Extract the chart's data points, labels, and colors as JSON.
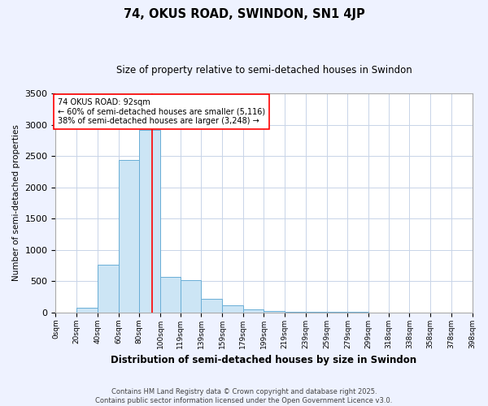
{
  "title": "74, OKUS ROAD, SWINDON, SN1 4JP",
  "subtitle": "Size of property relative to semi-detached houses in Swindon",
  "xlabel": "Distribution of semi-detached houses by size in Swindon",
  "ylabel": "Number of semi-detached properties",
  "annotation_text_line1": "74 OKUS ROAD: 92sqm",
  "annotation_text_line2": "← 60% of semi-detached houses are smaller (5,116)",
  "annotation_text_line3": "38% of semi-detached houses are larger (3,248) →",
  "bin_labels": [
    "0sqm",
    "20sqm",
    "40sqm",
    "60sqm",
    "80sqm",
    "100sqm",
    "119sqm",
    "139sqm",
    "159sqm",
    "179sqm",
    "199sqm",
    "219sqm",
    "239sqm",
    "259sqm",
    "279sqm",
    "299sqm",
    "318sqm",
    "338sqm",
    "358sqm",
    "378sqm",
    "398sqm"
  ],
  "bin_edges": [
    0,
    20,
    40,
    60,
    80,
    100,
    119,
    139,
    159,
    179,
    199,
    219,
    239,
    259,
    279,
    299,
    318,
    338,
    358,
    378,
    398
  ],
  "bar_heights": [
    0,
    70,
    760,
    2430,
    2920,
    570,
    510,
    220,
    110,
    50,
    20,
    10,
    5,
    3,
    2,
    1,
    0,
    0,
    0,
    0
  ],
  "bar_color": "#cce5f5",
  "bar_edge_color": "#6aaed6",
  "red_line_x": 92,
  "ylim": [
    0,
    3500
  ],
  "yticks": [
    0,
    500,
    1000,
    1500,
    2000,
    2500,
    3000,
    3500
  ],
  "footer_line1": "Contains HM Land Registry data © Crown copyright and database right 2025.",
  "footer_line2": "Contains public sector information licensed under the Open Government Licence v3.0.",
  "background_color": "#eef2ff",
  "plot_bg_color": "#ffffff",
  "grid_color": "#c8d4e8"
}
